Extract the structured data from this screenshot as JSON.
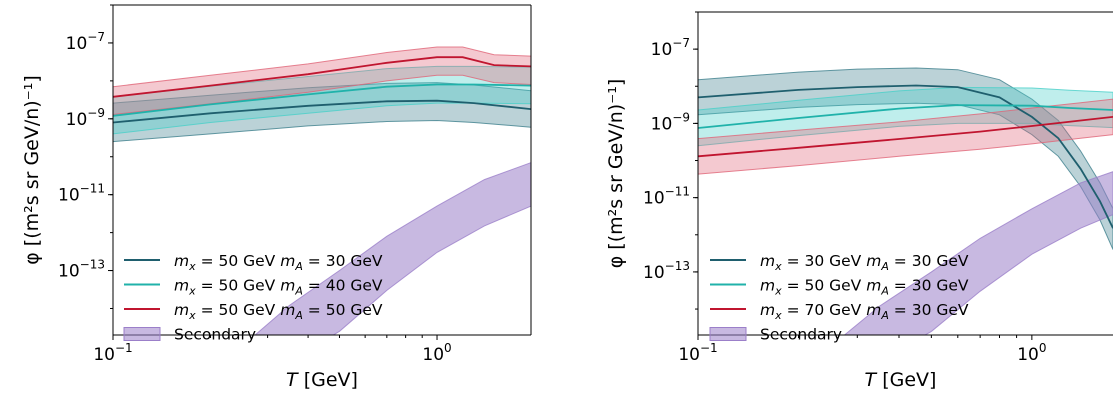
{
  "chart_data": [
    {
      "type": "line",
      "xlabel": "T [GeV]",
      "ylabel": "φ [(m²s sr GeV/n)⁻¹]",
      "xscale": "log",
      "yscale": "log",
      "xlim": [
        0.1,
        1.95
      ],
      "ylim": [
        2e-15,
        1e-06
      ],
      "xticks": [
        {
          "value": 0.1,
          "label": "10⁻¹"
        },
        {
          "value": 1,
          "label": "10⁰"
        }
      ],
      "yticks": [
        {
          "value": 1e-07,
          "label": "10⁻⁷"
        },
        {
          "value": 1e-09,
          "label": "10⁻⁹"
        },
        {
          "value": 1e-11,
          "label": "10⁻¹¹"
        },
        {
          "value": 1e-13,
          "label": "10⁻¹³"
        }
      ],
      "grid": false,
      "legend_position": "lower-left",
      "series": [
        {
          "name": "m_x = 50 GeV m_A = 30 GeV",
          "color": "#1f5f6e",
          "band_color": "#3d7f8c",
          "x": [
            0.1,
            0.2,
            0.4,
            0.7,
            1.0,
            1.3,
            1.95
          ],
          "y": [
            8e-10,
            1.4e-09,
            2.2e-09,
            2.9e-09,
            3e-09,
            2.6e-09,
            1.8e-09
          ],
          "lower": [
            2.5e-10,
            4e-10,
            6.5e-10,
            8.5e-10,
            9e-10,
            8e-10,
            6e-10
          ],
          "upper": [
            2.6e-09,
            4.2e-09,
            6.6e-09,
            8.6e-09,
            9e-09,
            7.8e-09,
            5.5e-09
          ]
        },
        {
          "name": "m_x = 50 GeV m_A = 40 GeV",
          "color": "#20b2aa",
          "band_color": "#48cfc8",
          "x": [
            0.1,
            0.2,
            0.4,
            0.7,
            1.0,
            1.3,
            1.95
          ],
          "y": [
            1.2e-09,
            2.4e-09,
            4.4e-09,
            7e-09,
            8e-09,
            8e-09,
            7.5e-09
          ],
          "lower": [
            4e-10,
            8e-10,
            1.4e-09,
            2.2e-09,
            2.6e-09,
            2.6e-09,
            2.5e-09
          ],
          "upper": [
            3.8e-09,
            7.2e-09,
            1.3e-08,
            2.1e-08,
            2.4e-08,
            2.4e-08,
            2.3e-08
          ]
        },
        {
          "name": "m_x = 50 GeV m_A = 50 GeV",
          "color": "#c0152f",
          "band_color": "#e06477",
          "x": [
            0.1,
            0.2,
            0.4,
            0.7,
            1.0,
            1.2,
            1.5,
            1.95
          ],
          "y": [
            3.8e-09,
            7.5e-09,
            1.5e-08,
            3e-08,
            4.2e-08,
            4.2e-08,
            2.6e-08,
            2.4e-08
          ],
          "lower": [
            1.3e-09,
            2.5e-09,
            5e-09,
            1e-08,
            1.4e-08,
            1.4e-08,
            9e-09,
            8e-09
          ],
          "upper": [
            7e-09,
            1.4e-08,
            2.8e-08,
            5.6e-08,
            7.8e-08,
            7.8e-08,
            4.9e-08,
            4.5e-08
          ]
        },
        {
          "name": "Secondary",
          "kind": "band",
          "band_color": "#9b7fc9",
          "x": [
            0.25,
            0.35,
            0.5,
            0.7,
            1.0,
            1.4,
            1.95
          ],
          "lower": [
            1e-15,
            4e-16,
            2.5e-15,
            3e-14,
            3e-13,
            1.5e-12,
            5e-12
          ],
          "upper": [
            1e-15,
            1.2e-14,
            1e-13,
            8e-13,
            5e-12,
            2.5e-11,
            7e-11
          ]
        }
      ]
    },
    {
      "type": "line",
      "xlabel": "T [GeV]",
      "ylabel": "φ [(m²s sr GeV/n)⁻¹]",
      "xscale": "log",
      "yscale": "log",
      "xlim": [
        0.1,
        1.75
      ],
      "ylim": [
        2e-15,
        1e-06
      ],
      "xticks": [
        {
          "value": 0.1,
          "label": "10⁻¹"
        },
        {
          "value": 1,
          "label": "10⁰"
        }
      ],
      "yticks": [
        {
          "value": 1e-07,
          "label": "10⁻⁷"
        },
        {
          "value": 1e-09,
          "label": "10⁻⁹"
        },
        {
          "value": 1e-11,
          "label": "10⁻¹¹"
        },
        {
          "value": 1e-13,
          "label": "10⁻¹³"
        }
      ],
      "grid": false,
      "legend_position": "lower-left",
      "series": [
        {
          "name": "m_x = 30 GeV m_A = 30 GeV",
          "color": "#1f5f6e",
          "band_color": "#3d7f8c",
          "x": [
            0.1,
            0.2,
            0.3,
            0.45,
            0.6,
            0.8,
            1.0,
            1.2,
            1.4,
            1.6,
            1.75
          ],
          "y": [
            5e-09,
            8e-09,
            9.5e-09,
            1.05e-08,
            9.5e-09,
            5e-09,
            1.5e-09,
            4e-10,
            6e-11,
            8e-12,
            1.5e-12
          ],
          "lower": [
            1.7e-09,
            2.7e-09,
            3.2e-09,
            3.5e-09,
            3.2e-09,
            1.7e-09,
            5e-10,
            1.3e-10,
            2e-11,
            2.5e-12,
            4e-13
          ],
          "upper": [
            1.5e-08,
            2.4e-08,
            2.9e-08,
            3.1e-08,
            2.8e-08,
            1.5e-08,
            4.5e-09,
            1.2e-09,
            1.8e-10,
            2.5e-11,
            5e-12
          ]
        },
        {
          "name": "m_x = 50 GeV m_A = 30 GeV",
          "color": "#20b2aa",
          "band_color": "#48cfc8",
          "x": [
            0.1,
            0.2,
            0.4,
            0.6,
            1.0,
            1.3,
            1.75
          ],
          "y": [
            7.5e-10,
            1.4e-09,
            2.5e-09,
            3.1e-09,
            3e-09,
            2.6e-09,
            2.3e-09
          ],
          "lower": [
            2.5e-10,
            4.7e-10,
            8.3e-10,
            1e-09,
            1e-09,
            8.7e-10,
            7.7e-10
          ],
          "upper": [
            2.3e-09,
            4.2e-09,
            7.5e-09,
            9.3e-09,
            9e-09,
            7.8e-09,
            6.9e-09
          ]
        },
        {
          "name": "m_x = 70 GeV m_A = 30 GeV",
          "color": "#c0152f",
          "band_color": "#e06477",
          "x": [
            0.1,
            0.2,
            0.4,
            0.7,
            1.0,
            1.4,
            1.75
          ],
          "y": [
            1.3e-10,
            2.2e-10,
            3.8e-10,
            6e-10,
            8.5e-10,
            1.2e-09,
            1.5e-09
          ],
          "lower": [
            4.3e-11,
            7.3e-11,
            1.3e-10,
            2e-10,
            2.8e-10,
            4e-10,
            5e-10
          ],
          "upper": [
            3.9e-10,
            6.6e-10,
            1.1e-09,
            1.8e-09,
            2.6e-09,
            3.6e-09,
            4.5e-09
          ]
        },
        {
          "name": "Secondary",
          "kind": "band",
          "band_color": "#9b7fc9",
          "x": [
            0.25,
            0.35,
            0.5,
            0.7,
            1.0,
            1.4,
            1.75
          ],
          "lower": [
            1e-15,
            4e-16,
            2.5e-15,
            3e-14,
            3e-13,
            1.5e-12,
            3.5e-12
          ],
          "upper": [
            1e-15,
            1.2e-14,
            1e-13,
            8e-13,
            5e-12,
            2.5e-11,
            5e-11
          ]
        }
      ]
    }
  ]
}
